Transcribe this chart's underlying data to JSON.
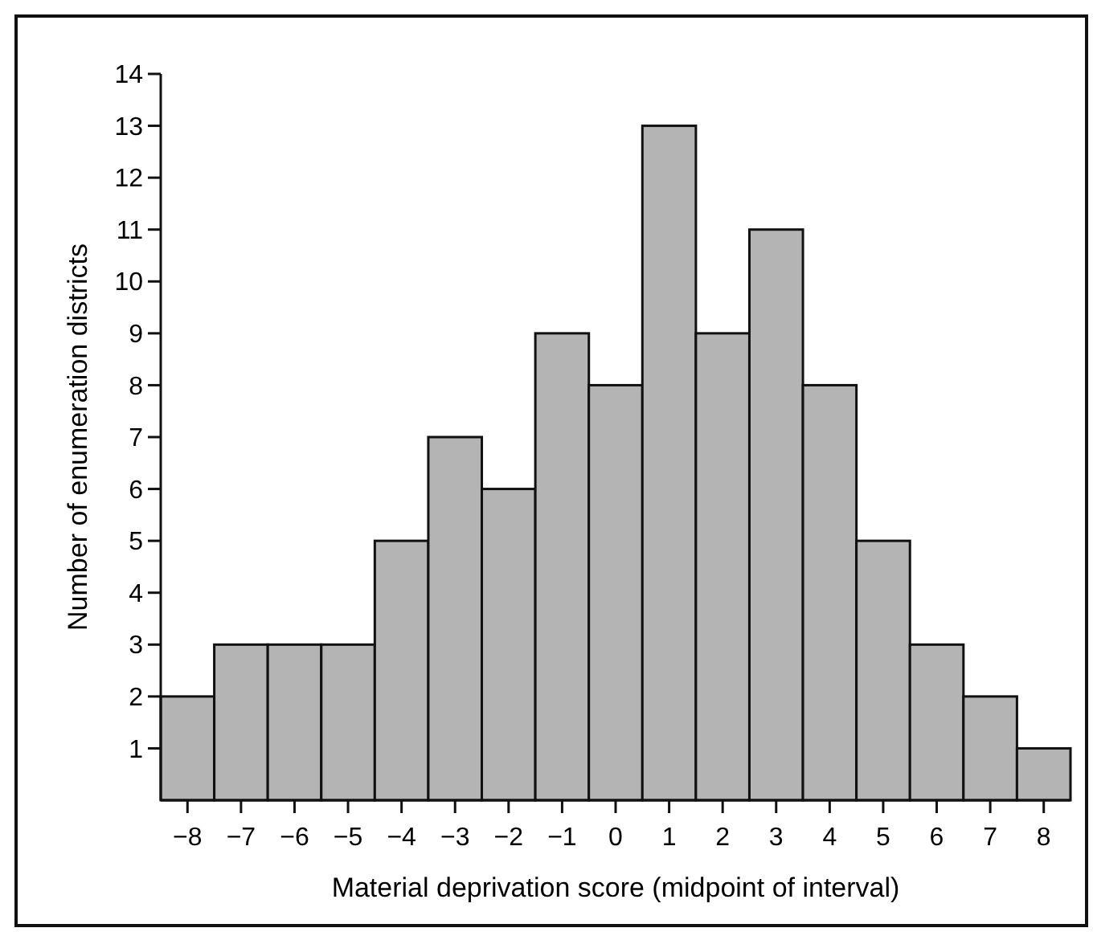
{
  "chart_data": {
    "type": "histogram",
    "xlabel": "Material deprivation score (midpoint of interval)",
    "ylabel": "Number of enumeration districts",
    "bins": [
      -8.5,
      -7.5,
      -6.5,
      -5.5,
      -4.5,
      -3.5,
      -2.5,
      -1.5,
      -0.5,
      0.5,
      1.5,
      2.5,
      3.5,
      4.5,
      5.5,
      6.5,
      7.5,
      8.5
    ],
    "values": [
      2,
      3,
      3,
      3,
      5,
      7,
      6,
      9,
      8,
      13,
      9,
      11,
      8,
      5,
      3,
      2,
      1
    ],
    "color": "#b4b4b4",
    "xlim": [
      -8.5,
      8.5
    ],
    "xticks": [
      -8,
      -7,
      -6,
      -5,
      -4,
      -3,
      -2,
      -1,
      0,
      1,
      2,
      3,
      4,
      5,
      6,
      7,
      8
    ],
    "ylim": [
      0,
      14
    ],
    "yticks": [
      1,
      2,
      3,
      4,
      5,
      6,
      7,
      8,
      9,
      10,
      11,
      12,
      13,
      14
    ],
    "grid": false
  }
}
